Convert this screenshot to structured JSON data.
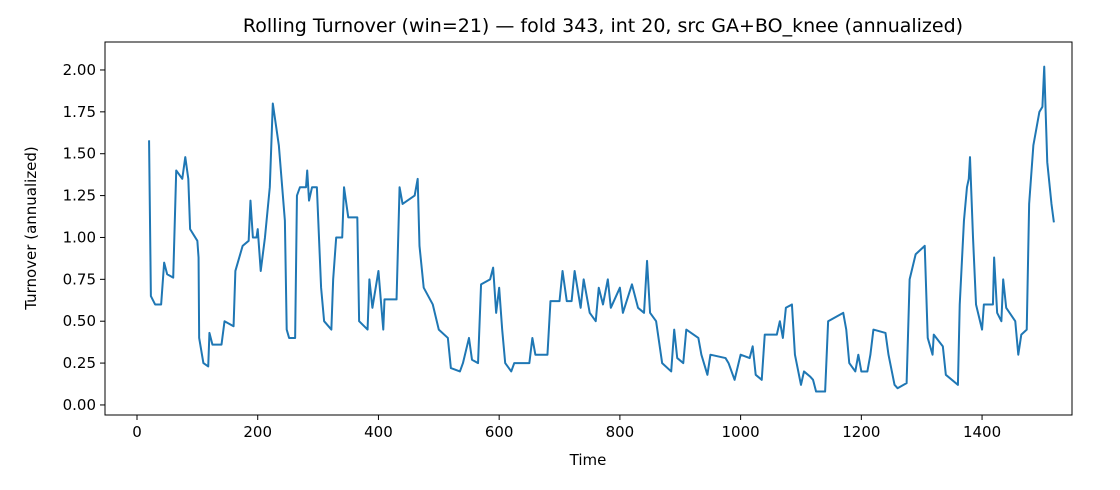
{
  "chart_data": {
    "type": "line",
    "title": "Rolling Turnover (win=21) — fold 343, int 20, src GA+BO_knee (annualized)",
    "xlabel": "Time",
    "ylabel": "Turnover (annualized)",
    "color": "#1f77b4",
    "xlim": [
      -53,
      1549
    ],
    "ylim": [
      -0.06,
      2.167
    ],
    "xticks": [
      0,
      200,
      400,
      600,
      800,
      1000,
      1200,
      1400
    ],
    "yticks": [
      {
        "value": 0,
        "label": "0.00"
      },
      {
        "value": 0.25,
        "label": "0.25"
      },
      {
        "value": 0.5,
        "label": "0.50"
      },
      {
        "value": 0.75,
        "label": "0.75"
      },
      {
        "value": 1,
        "label": "1.00"
      },
      {
        "value": 1.25,
        "label": "1.25"
      },
      {
        "value": 1.5,
        "label": "1.50"
      },
      {
        "value": 1.75,
        "label": "1.75"
      },
      {
        "value": 2,
        "label": "2.00"
      }
    ],
    "x": [
      20,
      23,
      30,
      40,
      45,
      50,
      60,
      65,
      75,
      80,
      85,
      88,
      100,
      102,
      103,
      110,
      118,
      120,
      125,
      140,
      145,
      160,
      163,
      175,
      185,
      188,
      192,
      198,
      200,
      205,
      212,
      220,
      225,
      235,
      245,
      248,
      252,
      262,
      265,
      270,
      280,
      282,
      285,
      290,
      298,
      305,
      310,
      322,
      325,
      330,
      340,
      343,
      350,
      365,
      368,
      382,
      385,
      390,
      400,
      405,
      408,
      410,
      430,
      435,
      440,
      460,
      465,
      468,
      475,
      490,
      500,
      515,
      520,
      535,
      540,
      550,
      555,
      565,
      570,
      585,
      590,
      595,
      600,
      605,
      610,
      620,
      625,
      650,
      655,
      660,
      680,
      685,
      700,
      705,
      712,
      720,
      725,
      735,
      740,
      750,
      760,
      765,
      772,
      780,
      785,
      800,
      805,
      820,
      830,
      840,
      845,
      850,
      860,
      870,
      885,
      890,
      895,
      905,
      910,
      930,
      935,
      945,
      950,
      975,
      980,
      990,
      1000,
      1015,
      1020,
      1025,
      1035,
      1040,
      1060,
      1065,
      1070,
      1075,
      1085,
      1090,
      1100,
      1105,
      1115,
      1120,
      1125,
      1140,
      1145,
      1170,
      1175,
      1180,
      1190,
      1195,
      1200,
      1210,
      1215,
      1220,
      1240,
      1245,
      1255,
      1260,
      1275,
      1278,
      1280,
      1290,
      1305,
      1310,
      1318,
      1320,
      1335,
      1340,
      1360,
      1363,
      1370,
      1375,
      1378,
      1380,
      1385,
      1390,
      1400,
      1403,
      1418,
      1420,
      1425,
      1432,
      1435,
      1440,
      1455,
      1460,
      1465,
      1474,
      1478,
      1485,
      1495,
      1500,
      1503,
      1508,
      1515,
      1519
    ],
    "values": [
      1.58,
      0.65,
      0.6,
      0.6,
      0.85,
      0.78,
      0.76,
      1.4,
      1.35,
      1.48,
      1.35,
      1.05,
      0.98,
      0.88,
      0.4,
      0.25,
      0.23,
      0.43,
      0.36,
      0.36,
      0.5,
      0.47,
      0.8,
      0.95,
      0.98,
      1.22,
      1.0,
      1.0,
      1.05,
      0.8,
      1.0,
      1.3,
      1.8,
      1.55,
      1.1,
      0.45,
      0.4,
      0.4,
      1.25,
      1.3,
      1.3,
      1.4,
      1.22,
      1.3,
      1.3,
      0.7,
      0.5,
      0.45,
      0.75,
      1.0,
      1.0,
      1.3,
      1.12,
      1.12,
      0.5,
      0.45,
      0.75,
      0.58,
      0.8,
      0.58,
      0.45,
      0.63,
      0.63,
      1.3,
      1.2,
      1.25,
      1.35,
      0.95,
      0.7,
      0.6,
      0.45,
      0.4,
      0.22,
      0.2,
      0.25,
      0.4,
      0.27,
      0.25,
      0.72,
      0.75,
      0.82,
      0.55,
      0.7,
      0.45,
      0.25,
      0.2,
      0.25,
      0.25,
      0.4,
      0.3,
      0.3,
      0.62,
      0.62,
      0.8,
      0.62,
      0.62,
      0.8,
      0.58,
      0.75,
      0.55,
      0.5,
      0.7,
      0.6,
      0.75,
      0.58,
      0.7,
      0.55,
      0.72,
      0.58,
      0.55,
      0.86,
      0.55,
      0.5,
      0.25,
      0.2,
      0.45,
      0.28,
      0.25,
      0.45,
      0.4,
      0.3,
      0.18,
      0.3,
      0.28,
      0.25,
      0.15,
      0.3,
      0.28,
      0.35,
      0.18,
      0.15,
      0.42,
      0.42,
      0.5,
      0.4,
      0.58,
      0.6,
      0.3,
      0.12,
      0.2,
      0.17,
      0.15,
      0.08,
      0.08,
      0.5,
      0.55,
      0.45,
      0.25,
      0.2,
      0.3,
      0.2,
      0.2,
      0.3,
      0.45,
      0.43,
      0.3,
      0.12,
      0.1,
      0.13,
      0.5,
      0.75,
      0.9,
      0.95,
      0.4,
      0.3,
      0.42,
      0.35,
      0.18,
      0.12,
      0.6,
      1.1,
      1.3,
      1.35,
      1.48,
      1.0,
      0.6,
      0.45,
      0.6,
      0.6,
      0.88,
      0.55,
      0.5,
      0.75,
      0.58,
      0.5,
      0.3,
      0.42,
      0.45,
      1.2,
      1.55,
      1.75,
      1.78,
      2.02,
      1.45,
      1.2,
      1.09
    ]
  }
}
